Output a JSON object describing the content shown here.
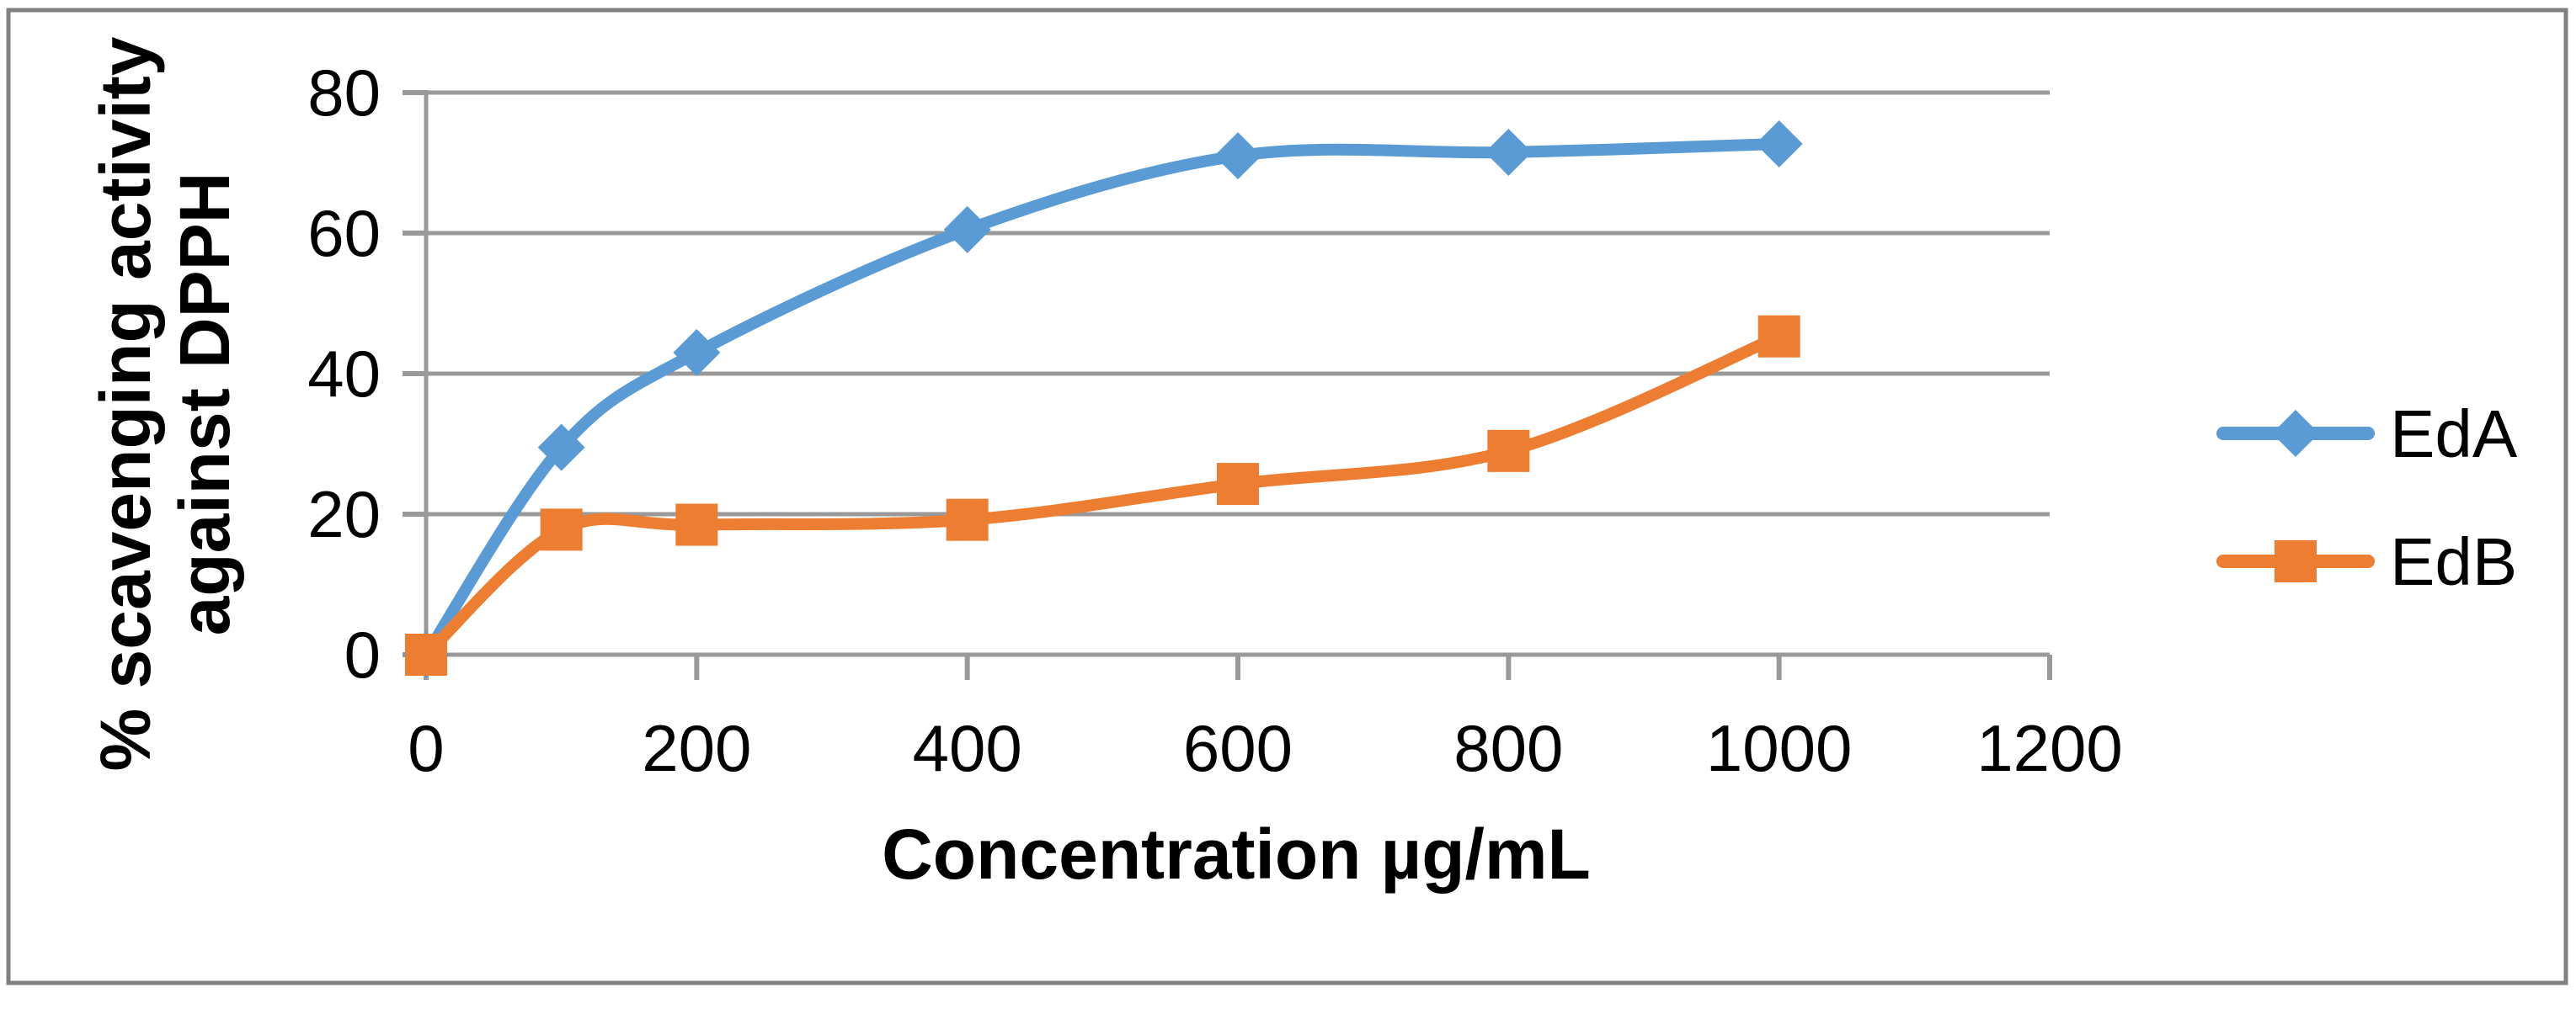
{
  "chart_data": {
    "type": "line",
    "title": "",
    "xlabel": "Concentration µg/mL",
    "ylabel": "% scavenging activity against DPPH",
    "ylabel_lines": [
      "% scavenging activity",
      "against DPPH"
    ],
    "x": [
      0,
      100,
      200,
      400,
      600,
      800,
      1000
    ],
    "series": [
      {
        "name": "EdA",
        "color": "#5B9BD5",
        "marker": "diamond",
        "values": [
          0,
          29.5,
          43,
          60.5,
          71,
          71.5,
          72.7
        ]
      },
      {
        "name": "EdB",
        "color": "#ED7D31",
        "marker": "square",
        "values": [
          0,
          17.8,
          18.5,
          19.2,
          24.3,
          29,
          45.3
        ]
      }
    ],
    "x_ticks": [
      0,
      200,
      400,
      600,
      800,
      1000,
      1200
    ],
    "y_ticks": [
      0,
      20,
      40,
      60,
      80
    ],
    "xlim": [
      0,
      1200
    ],
    "ylim": [
      0,
      80
    ],
    "grid": true,
    "smooth_lines": true,
    "legend_position": "right",
    "colors": {
      "grid": "#999999",
      "axis": "#999999",
      "border": "#808080",
      "background": "#ffffff",
      "text": "#000000"
    }
  }
}
